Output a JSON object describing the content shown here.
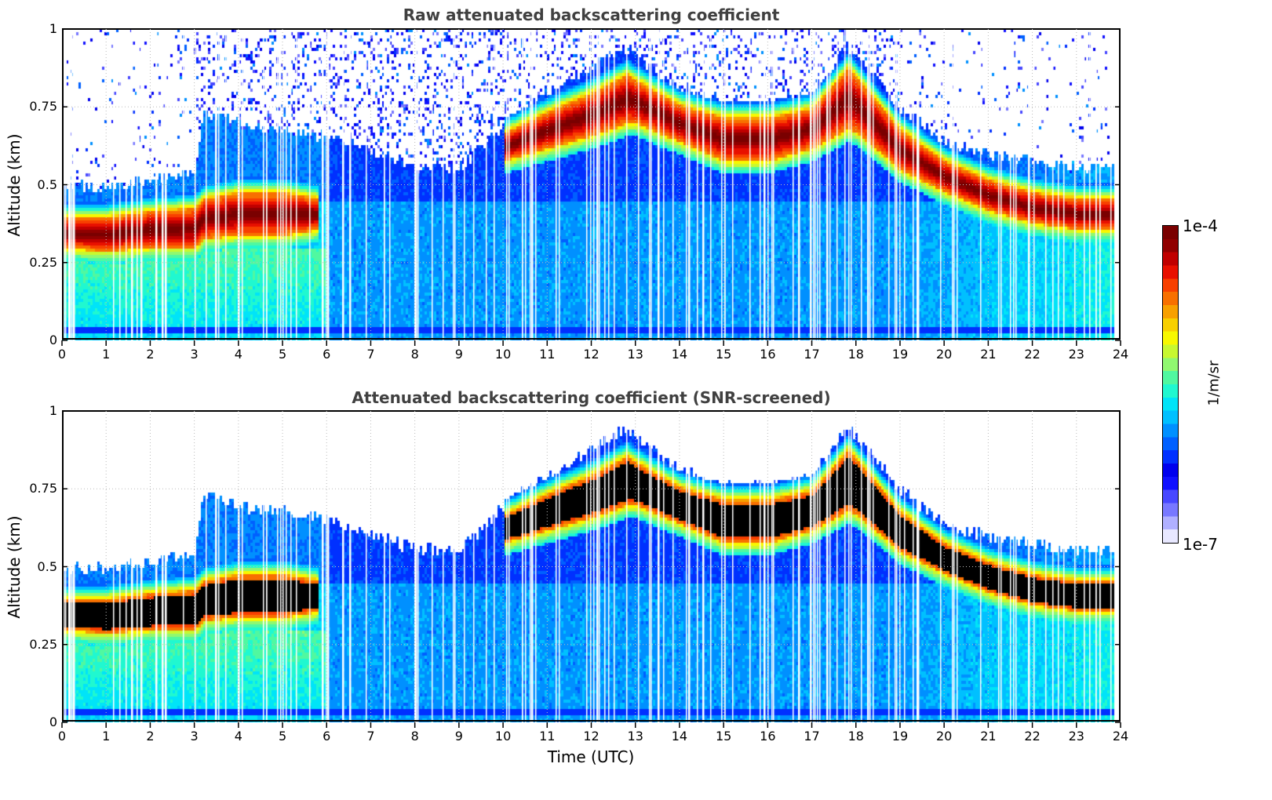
{
  "chart_data": [
    {
      "type": "heatmap",
      "title": "Raw attenuated backscattering coefficient",
      "xlabel": "",
      "ylabel": "Altitude (km)",
      "xlim": [
        0,
        24
      ],
      "ylim": [
        0,
        1
      ],
      "x_ticks": [
        "0",
        "1",
        "2",
        "3",
        "4",
        "5",
        "6",
        "7",
        "8",
        "9",
        "10",
        "11",
        "12",
        "13",
        "14",
        "15",
        "16",
        "17",
        "18",
        "19",
        "20",
        "21",
        "22",
        "23",
        "24"
      ],
      "y_ticks": [
        "0",
        "0.25",
        "0.5",
        "0.75",
        "1"
      ],
      "grid": true,
      "screened": false,
      "data_end_time": 23.85,
      "layer_profile": {
        "time": [
          0,
          1,
          2,
          3,
          3.2,
          4,
          5,
          5.8,
          6,
          8,
          9,
          10,
          11,
          12,
          12.8,
          13,
          14,
          15,
          16,
          17,
          17.8,
          18,
          19,
          20,
          21,
          22,
          23,
          23.85
        ],
        "cloud_base_km": [
          0.3,
          0.29,
          0.3,
          0.3,
          0.33,
          0.34,
          0.34,
          0.36,
          null,
          null,
          null,
          0.58,
          0.62,
          0.66,
          0.7,
          0.7,
          0.64,
          0.58,
          0.58,
          0.62,
          0.68,
          0.67,
          0.55,
          0.48,
          0.42,
          0.38,
          0.36,
          0.36
        ],
        "cloud_top_km": [
          0.4,
          0.4,
          0.42,
          0.43,
          0.46,
          0.48,
          0.48,
          0.46,
          null,
          null,
          null,
          0.67,
          0.74,
          0.8,
          0.86,
          0.84,
          0.76,
          0.72,
          0.72,
          0.75,
          0.88,
          0.85,
          0.68,
          0.58,
          0.52,
          0.48,
          0.46,
          0.46
        ],
        "signal_top_km": [
          0.5,
          0.5,
          0.52,
          0.55,
          0.74,
          0.7,
          0.68,
          0.66,
          0.66,
          0.56,
          0.56,
          0.7,
          0.8,
          0.88,
          0.95,
          0.92,
          0.82,
          0.76,
          0.76,
          0.8,
          0.95,
          0.92,
          0.75,
          0.64,
          0.6,
          0.58,
          0.56,
          0.56
        ]
      }
    },
    {
      "type": "heatmap",
      "title": "Attenuated backscattering coefficient (SNR-screened)",
      "xlabel": "Time (UTC)",
      "ylabel": "Altitude (km)",
      "xlim": [
        0,
        24
      ],
      "ylim": [
        0,
        1
      ],
      "x_ticks": [
        "0",
        "1",
        "2",
        "3",
        "4",
        "5",
        "6",
        "7",
        "8",
        "9",
        "10",
        "11",
        "12",
        "13",
        "14",
        "15",
        "16",
        "17",
        "18",
        "19",
        "20",
        "21",
        "22",
        "23",
        "24"
      ],
      "y_ticks": [
        "0",
        "0.25",
        "0.5",
        "0.75",
        "1"
      ],
      "grid": true,
      "screened": true,
      "data_end_time": 23.85
    }
  ],
  "colorbar": {
    "label": "1/m/sr",
    "max_label": "1e-4",
    "min_label": "1e-7",
    "scale": "log",
    "range": [
      1e-07,
      0.0001
    ],
    "colormap": [
      "#e8e8ff",
      "#b0b0ff",
      "#7878ff",
      "#4848ff",
      "#1010ff",
      "#0000ee",
      "#0030ff",
      "#0060ff",
      "#0090ff",
      "#00c0ff",
      "#00e4f8",
      "#20f8d0",
      "#50f8a0",
      "#90f870",
      "#c8f830",
      "#f8f800",
      "#f8d000",
      "#f8a000",
      "#f87000",
      "#f84000",
      "#e81000",
      "#c00000",
      "#900000",
      "#7a0000"
    ]
  },
  "colors": {
    "title_text": "#404040",
    "screened_core": "#000000",
    "grid": "#bbbbbb"
  }
}
